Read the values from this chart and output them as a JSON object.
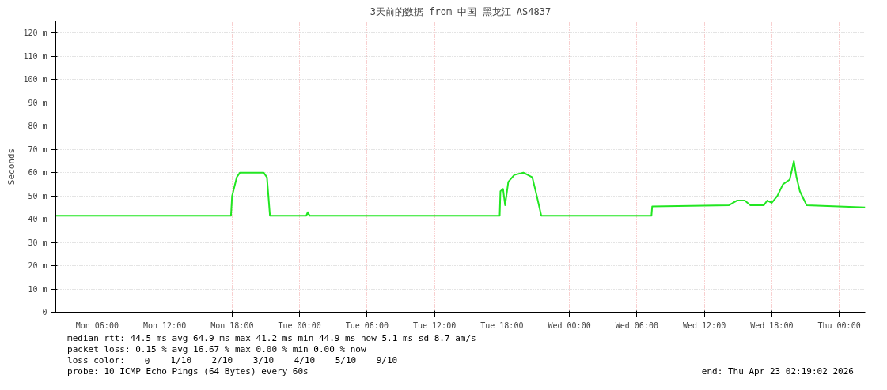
{
  "chart_data": {
    "type": "line",
    "title": "3天前的数据 from 中国 黑龙江 AS4837",
    "ylabel": "Seconds",
    "xlim": [
      "2026-04-20T02:19",
      "2026-04-23T02:19"
    ],
    "ylim": [
      0,
      125.2
    ],
    "xticks": [
      {
        "value": "2026-04-20T06:00",
        "label": "Mon 06:00"
      },
      {
        "value": "2026-04-20T12:00",
        "label": "Mon 12:00"
      },
      {
        "value": "2026-04-20T18:00",
        "label": "Mon 18:00"
      },
      {
        "value": "2026-04-21T00:00",
        "label": "Tue 00:00"
      },
      {
        "value": "2026-04-21T06:00",
        "label": "Tue 06:00"
      },
      {
        "value": "2026-04-21T12:00",
        "label": "Tue 12:00"
      },
      {
        "value": "2026-04-21T18:00",
        "label": "Tue 18:00"
      },
      {
        "value": "2026-04-22T00:00",
        "label": "Wed 00:00"
      },
      {
        "value": "2026-04-22T06:00",
        "label": "Wed 06:00"
      },
      {
        "value": "2026-04-22T12:00",
        "label": "Wed 12:00"
      },
      {
        "value": "2026-04-22T18:00",
        "label": "Wed 18:00"
      },
      {
        "value": "2026-04-23T00:00",
        "label": "Thu 00:00"
      }
    ],
    "yticks": [
      0,
      {
        "value": 10,
        "label": "10 m"
      },
      {
        "value": 20,
        "label": "20 m"
      },
      {
        "value": 30,
        "label": "30 m"
      },
      {
        "value": 40,
        "label": "40 m"
      },
      {
        "value": 50,
        "label": "50 m"
      },
      {
        "value": 60,
        "label": "60 m"
      },
      {
        "value": 70,
        "label": "70 m"
      },
      {
        "value": 80,
        "label": "80 m"
      },
      {
        "value": 90,
        "label": "90 m"
      },
      {
        "value": 100,
        "label": "100 m"
      },
      {
        "value": 110,
        "label": "110 m"
      },
      {
        "value": 120,
        "label": "120 m"
      }
    ],
    "grid": true,
    "series": [
      {
        "color": "#22e622",
        "x": [
          "2026-04-20T02:19",
          "2026-04-20T10:00",
          "2026-04-20T17:54",
          "2026-04-20T18:00",
          "2026-04-20T18:25",
          "2026-04-20T18:42",
          "2026-04-20T20:48",
          "2026-04-20T21:06",
          "2026-04-20T21:22",
          "2026-04-21T00:36",
          "2026-04-21T00:44",
          "2026-04-21T00:54",
          "2026-04-21T06:00",
          "2026-04-21T17:48",
          "2026-04-21T17:52",
          "2026-04-21T18:06",
          "2026-04-21T18:17",
          "2026-04-21T18:34",
          "2026-04-21T19:06",
          "2026-04-21T19:54",
          "2026-04-21T20:42",
          "2026-04-21T21:06",
          "2026-04-21T21:30",
          "2026-04-22T07:18",
          "2026-04-22T07:22",
          "2026-04-22T14:12",
          "2026-04-22T14:54",
          "2026-04-22T15:36",
          "2026-04-22T16:06",
          "2026-04-22T17:18",
          "2026-04-22T17:36",
          "2026-04-22T18:00",
          "2026-04-22T18:30",
          "2026-04-22T19:00",
          "2026-04-22T19:36",
          "2026-04-22T19:58",
          "2026-04-22T20:12",
          "2026-04-22T20:30",
          "2026-04-22T21:06",
          "2026-04-23T02:19"
        ],
        "values": [
          41.5,
          41.5,
          41.5,
          50,
          58,
          60,
          60,
          58,
          41.5,
          41.5,
          43,
          41.5,
          41.5,
          41.5,
          52,
          53,
          46,
          56,
          59,
          60,
          58,
          50,
          41.5,
          41.5,
          45.5,
          46,
          48,
          48,
          46,
          46,
          48,
          47,
          50,
          55,
          57,
          65,
          58,
          52,
          46,
          45
        ]
      }
    ],
    "annotations": [
      "median rtt:  44.5 ms avg  64.9 ms max  41.2 ms min  44.9 ms now  5.1 ms sd  8.7   am/s",
      "packet loss: 0.15 % avg  16.67 % max  0.00 % min  0.00 % now",
      "loss color:",
      "0",
      "1/10",
      "2/10",
      "3/10",
      "4/10",
      "5/10",
      "9/10",
      "probe:       10 ICMP Echo Pings (64 Bytes) every 60s",
      "end: Thu Apr 23 02:19:02 2026"
    ]
  }
}
